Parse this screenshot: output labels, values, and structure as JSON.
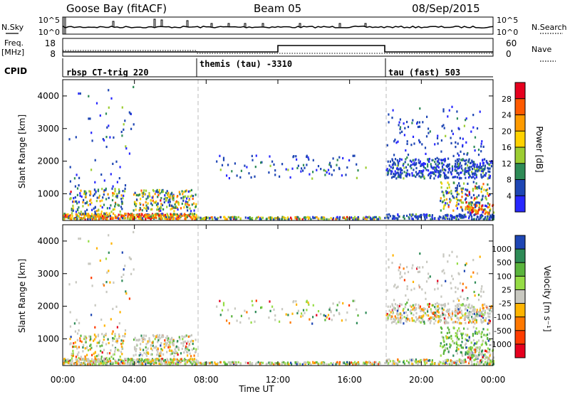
{
  "header": {
    "station": "Goose Bay (fitACF)",
    "beam": "Beam 05",
    "date": "08/Sep/2015"
  },
  "noise_panel": {
    "left_label": "N.Sky",
    "left_ticks": [
      "10^5",
      "10^0"
    ],
    "right_ticks": [
      "10^5",
      "10^0"
    ],
    "right_label": "N.Search"
  },
  "freq_panel": {
    "left_label_top": "Freq.",
    "left_label_unit": "[MHz]",
    "left_ticks": [
      "18",
      "8"
    ],
    "right_ticks": [
      "60",
      "0"
    ],
    "right_label": "Nave"
  },
  "cpid_panel": {
    "label": "CPID",
    "segments": [
      "rbsp CT-trig 220",
      "themis (tau) -3310",
      "tau (fast) 503"
    ]
  },
  "chart_data": [
    {
      "type": "heatmap",
      "panel": "power",
      "ylabel": "Slant Range [km]",
      "y_ticks": [
        1000,
        2000,
        3000,
        4000
      ],
      "ylim": [
        180,
        4500
      ],
      "x_range_hours": [
        0,
        24
      ],
      "colorbar": {
        "label": "Power [dB]",
        "ticks": [
          "28",
          "24",
          "20",
          "16",
          "12",
          "8",
          "4"
        ],
        "colors": [
          "#e6001e",
          "#ff5a00",
          "#ff9b00",
          "#ffd200",
          "#9ccd32",
          "#2e8b57",
          "#1e46b4",
          "#2828ff"
        ]
      },
      "dashed_lines_hours": [
        7.5,
        18.0
      ]
    },
    {
      "type": "heatmap",
      "panel": "velocity",
      "ylabel": "Slant Range [km]",
      "y_ticks": [
        1000,
        2000,
        3000,
        4000
      ],
      "ylim": [
        180,
        4500
      ],
      "x_range_hours": [
        0,
        24
      ],
      "colorbar": {
        "label": "Velocity [m s⁻¹]",
        "ticks": [
          "1000",
          "500",
          "100",
          "25",
          "-25",
          "-100",
          "-500",
          "-1000"
        ],
        "colors": [
          "#1e46b4",
          "#2e8b57",
          "#5ab43c",
          "#96dc46",
          "#c8c8c0",
          "#ffb400",
          "#ff7800",
          "#ff3c00",
          "#e6001e"
        ]
      },
      "dashed_lines_hours": [
        7.5,
        18.0
      ]
    }
  ],
  "time_axis": {
    "ticks": [
      "00:00",
      "04:00",
      "08:00",
      "12:00",
      "16:00",
      "20:00",
      "00:00"
    ],
    "label": "Time UT"
  }
}
